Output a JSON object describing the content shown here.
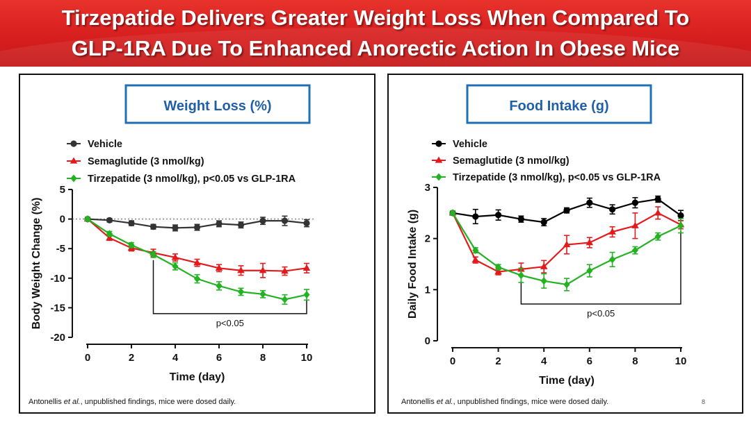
{
  "slide": {
    "title_line1": "Tirzepatide Delivers Greater Weight Loss When Compared To",
    "title_line2": "GLP-1RA Due To Enhanced Anorectic Action In Obese Mice",
    "page_number": "8",
    "colors": {
      "header_red": "#d71f1f",
      "box_border": "#1f6fb5",
      "box_title": "#1f5fa8"
    }
  },
  "footnote": {
    "author": "Antonellis ",
    "etal": "et al.",
    "rest": ", unpublished findings, mice were dosed daily."
  },
  "chart_data": [
    {
      "type": "line",
      "title": "Weight Loss (%)",
      "xlabel": "Time (day)",
      "ylabel": "Body Weight Change (%)",
      "xlim": [
        0,
        10
      ],
      "ylim": [
        -20,
        5
      ],
      "xticks": [
        0,
        2,
        4,
        6,
        8,
        10
      ],
      "yticks": [
        5,
        0,
        -5,
        -10,
        -15,
        -20
      ],
      "reference_line": 0,
      "legend": "top-left",
      "annotation": {
        "text": "p<0.05",
        "from_x": 3,
        "to_x": 10,
        "y": -16
      },
      "series": [
        {
          "name": "Vehicle",
          "color": "#333333",
          "marker": "circle",
          "x": [
            0,
            1,
            2,
            3,
            4,
            5,
            6,
            7,
            8,
            9,
            10
          ],
          "y": [
            0,
            -0.2,
            -0.7,
            -1.3,
            -1.5,
            -1.4,
            -0.8,
            -1.0,
            -0.3,
            -0.3,
            -0.7
          ],
          "err": [
            0.3,
            0.3,
            0.4,
            0.4,
            0.5,
            0.5,
            0.5,
            0.5,
            0.6,
            0.8,
            0.6
          ]
        },
        {
          "name": "Semaglutide (3 nmol/kg)",
          "color": "#e31a1c",
          "marker": "triangle",
          "x": [
            0,
            1,
            2,
            3,
            4,
            5,
            6,
            7,
            8,
            9,
            10
          ],
          "y": [
            0,
            -3.2,
            -4.9,
            -5.7,
            -6.5,
            -7.4,
            -8.3,
            -8.7,
            -8.7,
            -8.8,
            -8.3
          ],
          "err": [
            0.3,
            0.4,
            0.5,
            0.6,
            0.6,
            0.6,
            0.6,
            0.8,
            1.2,
            0.7,
            0.8
          ]
        },
        {
          "name": "Tirzepatide (3 nmol/kg), p<0.05 vs GLP-1RA",
          "color": "#22b222",
          "marker": "diamond",
          "x": [
            0,
            1,
            2,
            3,
            4,
            5,
            6,
            7,
            8,
            9,
            10
          ],
          "y": [
            0,
            -2.5,
            -4.4,
            -6.0,
            -8.0,
            -10.1,
            -11.3,
            -12.3,
            -12.7,
            -13.6,
            -12.8
          ],
          "err": [
            0.3,
            0.4,
            0.4,
            0.5,
            0.6,
            0.7,
            0.7,
            0.6,
            0.6,
            0.8,
            0.9
          ]
        }
      ]
    },
    {
      "type": "line",
      "title": "Food Intake (g)",
      "xlabel": "Time (day)",
      "ylabel": "Daily Food Intake (g)",
      "xlim": [
        0,
        10
      ],
      "ylim": [
        0,
        3
      ],
      "xticks": [
        0,
        2,
        4,
        6,
        8,
        10
      ],
      "yticks": [
        3,
        2,
        1,
        0
      ],
      "legend": "top-left",
      "annotation": {
        "text": "p<0.05",
        "from_x": 3,
        "to_x": 10,
        "y": 0.72
      },
      "series": [
        {
          "name": "Vehicle",
          "color": "#000000",
          "marker": "circle",
          "x": [
            0,
            1,
            2,
            3,
            4,
            5,
            6,
            7,
            8,
            9,
            10
          ],
          "y": [
            2.5,
            2.43,
            2.46,
            2.38,
            2.32,
            2.55,
            2.7,
            2.57,
            2.7,
            2.77,
            2.45
          ],
          "err": [
            0.04,
            0.14,
            0.1,
            0.06,
            0.07,
            0.05,
            0.09,
            0.09,
            0.1,
            0.06,
            0.1
          ]
        },
        {
          "name": "Semaglutide (3 nmol/kg)",
          "color": "#e31a1c",
          "marker": "triangle",
          "x": [
            0,
            1,
            2,
            3,
            4,
            5,
            6,
            7,
            8,
            9,
            10
          ],
          "y": [
            2.5,
            1.58,
            1.35,
            1.4,
            1.45,
            1.88,
            1.92,
            2.13,
            2.25,
            2.5,
            2.27
          ],
          "err": [
            0.04,
            0.06,
            0.06,
            0.12,
            0.12,
            0.18,
            0.1,
            0.1,
            0.25,
            0.12,
            0.08
          ]
        },
        {
          "name": "Tirzepatide (3 nmol/kg), p<0.05 vs GLP-1RA",
          "color": "#22b222",
          "marker": "diamond",
          "x": [
            0,
            1,
            2,
            3,
            4,
            5,
            6,
            7,
            8,
            9,
            10
          ],
          "y": [
            2.5,
            1.77,
            1.44,
            1.28,
            1.17,
            1.1,
            1.37,
            1.59,
            1.77,
            2.04,
            2.25
          ],
          "err": [
            0.04,
            0.05,
            0.05,
            0.14,
            0.14,
            0.12,
            0.12,
            0.14,
            0.07,
            0.07,
            0.14
          ]
        }
      ]
    }
  ]
}
